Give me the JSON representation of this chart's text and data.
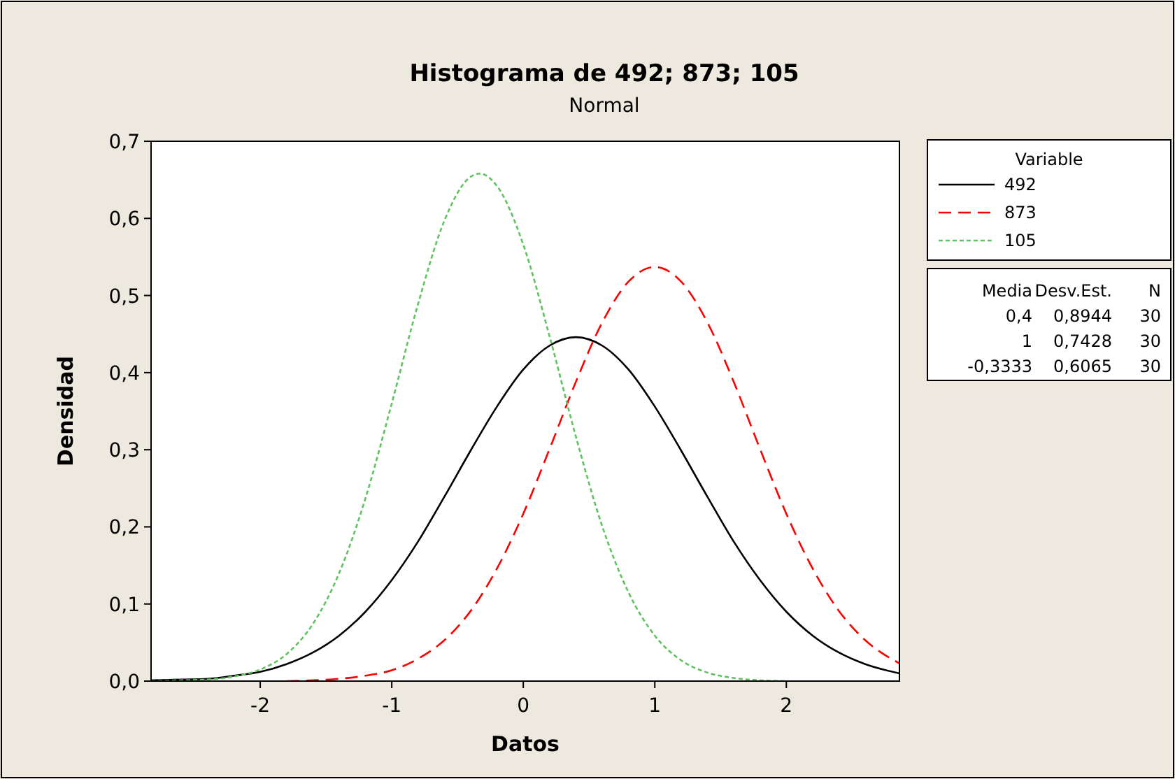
{
  "chart_data": {
    "type": "line",
    "title": "Histograma de 492; 873; 105",
    "subtitle": "Normal",
    "xlabel": "Datos",
    "ylabel": "Densidad",
    "legend_title": "Variable",
    "legend": "right",
    "grid": false,
    "x": [
      -2.83,
      -2.6,
      -2.4,
      -2.2,
      -2.0,
      -1.8,
      -1.6,
      -1.4,
      -1.2,
      -1.0,
      -0.8,
      -0.6,
      -0.4,
      -0.2,
      0,
      0.2,
      0.4,
      0.6,
      0.8,
      1.0,
      1.2,
      1.4,
      1.6,
      1.8,
      2.0,
      2.2,
      2.4,
      2.6,
      2.86
    ],
    "xlim": [
      -2.83,
      2.86
    ],
    "xticks": [
      -2,
      -1,
      0,
      1,
      2
    ],
    "ylim": [
      0,
      0.7
    ],
    "yticks": [
      {
        "value": 0,
        "label": "0,0"
      },
      {
        "value": 0.1,
        "label": "0,1"
      },
      {
        "value": 0.2,
        "label": "0,2"
      },
      {
        "value": 0.3,
        "label": "0,3"
      },
      {
        "value": 0.4,
        "label": "0,4"
      },
      {
        "value": 0.5,
        "label": "0,5"
      },
      {
        "value": 0.6,
        "label": "0,6"
      },
      {
        "value": 0.7,
        "label": "0,7"
      }
    ],
    "series": [
      {
        "name": "492",
        "color": "#000000",
        "line_style": "solid",
        "values": [
          0.001,
          0.002,
          0.003,
          0.007,
          0.012,
          0.022,
          0.037,
          0.059,
          0.09,
          0.131,
          0.181,
          0.239,
          0.299,
          0.356,
          0.404,
          0.435,
          0.446,
          0.435,
          0.404,
          0.356,
          0.299,
          0.239,
          0.181,
          0.131,
          0.09,
          0.059,
          0.037,
          0.022,
          0.01
        ]
      },
      {
        "name": "873",
        "color": "#ff0000",
        "line_style": "dashed",
        "values": [
          null,
          null,
          null,
          null,
          null,
          0,
          0.001,
          0.003,
          0.007,
          0.014,
          0.029,
          0.053,
          0.091,
          0.146,
          0.217,
          0.301,
          0.388,
          0.465,
          0.518,
          0.537,
          0.518,
          0.465,
          0.388,
          0.301,
          0.217,
          0.146,
          0.091,
          0.053,
          0.023
        ]
      },
      {
        "name": "105",
        "color": "#5fc35f",
        "line_style": "dotted",
        "x": [
          -2.83,
          -2.6,
          -2.4,
          -2.2,
          -2.0,
          -1.8,
          -1.6,
          -1.4,
          -1.2,
          -1.0,
          -0.8,
          -0.6,
          -0.4,
          -0.33,
          -0.2,
          0,
          0.2,
          0.4,
          0.6,
          0.8,
          1.0,
          1.2,
          1.4,
          1.6,
          1.8,
          2.0
        ],
        "values": [
          0,
          0.001,
          0.002,
          0.006,
          0.015,
          0.035,
          0.074,
          0.14,
          0.237,
          0.36,
          0.489,
          0.597,
          0.654,
          0.658,
          0.642,
          0.566,
          0.447,
          0.317,
          0.201,
          0.115,
          0.059,
          0.027,
          0.011,
          0.004,
          0.001,
          0
        ]
      }
    ],
    "annotations": [
      "Media",
      "Desv.Est.",
      "N",
      "0,4",
      "0,8944",
      "30",
      "1",
      "0,7428",
      "30",
      "-0,3333",
      "0,6065",
      "30"
    ]
  }
}
